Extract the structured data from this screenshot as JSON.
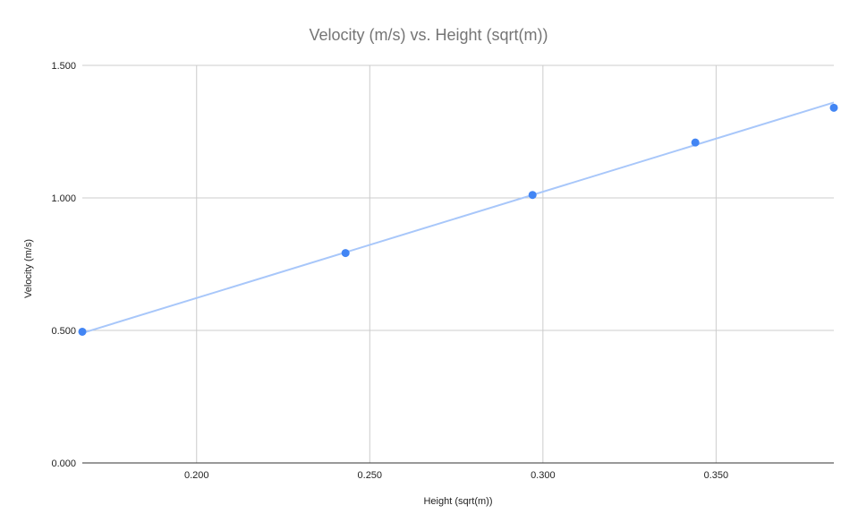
{
  "chart_data": {
    "type": "scatter",
    "title": "Velocity (m/s) vs. Height (sqrt(m))",
    "xlabel": "Height (sqrt(m))",
    "ylabel": "Velocity (m/s)",
    "xlim": [
      0.167,
      0.384
    ],
    "ylim": [
      0,
      1.5
    ],
    "x_ticks": [
      0.2,
      0.25,
      0.3,
      0.35
    ],
    "x_tick_labels": [
      "0.200",
      "0.250",
      "0.300",
      "0.350"
    ],
    "y_ticks": [
      0,
      0.5,
      1.0,
      1.5
    ],
    "y_tick_labels": [
      "0.000",
      "0.500",
      "1.000",
      "1.500"
    ],
    "grid": true,
    "legend": "none",
    "series": [
      {
        "x": [
          0.167,
          0.243,
          0.297,
          0.344,
          0.384
        ],
        "y": [
          0.495,
          0.792,
          1.011,
          1.209,
          1.34
        ],
        "color": "#4285f4"
      }
    ],
    "trendline": {
      "type": "linear",
      "x": [
        0.167,
        0.384
      ],
      "y": [
        0.49,
        1.36
      ],
      "color": "#a8c7fa"
    }
  }
}
